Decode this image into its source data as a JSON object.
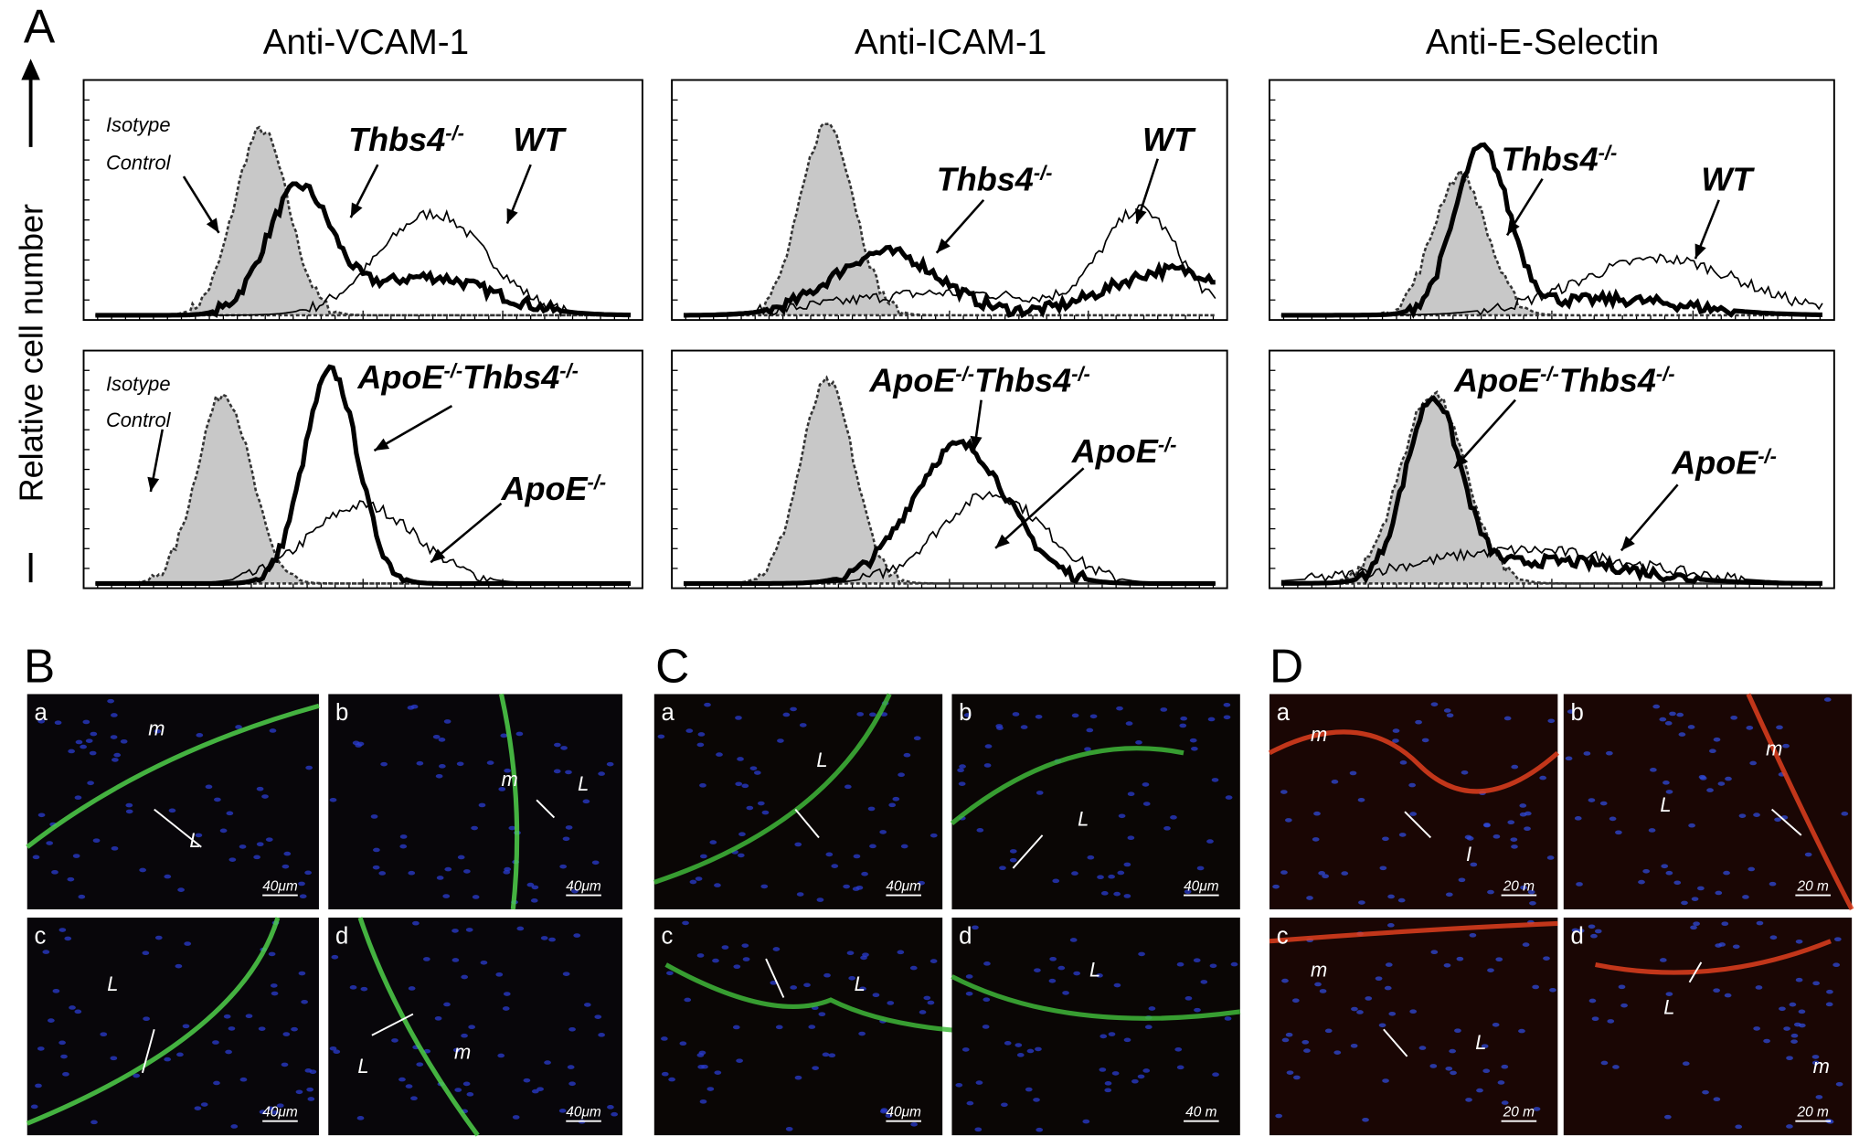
{
  "panel_a": {
    "label": "A",
    "y_axis_label": "Relative cell number",
    "columns": [
      {
        "title": "Anti-VCAM-1",
        "top_labels": [
          {
            "lines": [
              "Isotype",
              "Control"
            ]
          },
          {
            "parts": [
              {
                "text": "Thbs4",
                "sup": "-/-"
              }
            ]
          },
          {
            "parts": [
              {
                "text": "WT"
              }
            ]
          }
        ],
        "bottom_labels": [
          {
            "lines": [
              "Isotype",
              "Control"
            ]
          },
          {
            "parts": [
              {
                "text": "ApoE",
                "sup": "-/-"
              },
              {
                "text": "Thbs4",
                "sup": "-/-"
              }
            ]
          },
          {
            "parts": [
              {
                "text": "ApoE",
                "sup": "-/-"
              }
            ]
          }
        ]
      },
      {
        "title": "Anti-ICAM-1",
        "top_labels": [
          {
            "parts": [
              {
                "text": "Thbs4",
                "sup": "-/-"
              }
            ]
          },
          {
            "parts": [
              {
                "text": "WT"
              }
            ]
          }
        ],
        "bottom_labels": [
          {
            "parts": [
              {
                "text": "ApoE",
                "sup": "-/-"
              },
              {
                "text": "Thbs4",
                "sup": "-/-"
              }
            ]
          },
          {
            "parts": [
              {
                "text": "ApoE",
                "sup": "-/-"
              }
            ]
          }
        ]
      },
      {
        "title": "Anti-E-Selectin",
        "top_labels": [
          {
            "parts": [
              {
                "text": "Thbs4",
                "sup": "-/-"
              }
            ]
          },
          {
            "parts": [
              {
                "text": "WT"
              }
            ]
          }
        ],
        "bottom_labels": [
          {
            "parts": [
              {
                "text": "ApoE",
                "sup": "-/-"
              },
              {
                "text": "Thbs4",
                "sup": "-/-"
              }
            ]
          },
          {
            "parts": [
              {
                "text": "ApoE",
                "sup": "-/-"
              }
            ]
          }
        ]
      }
    ]
  },
  "micro_panels": [
    {
      "label": "B",
      "tiles": [
        {
          "letter": "a",
          "marks": [
            "m",
            "L"
          ],
          "scale_bar": "40μm"
        },
        {
          "letter": "b",
          "marks": [
            "L",
            "m"
          ],
          "scale_bar": "40μm"
        },
        {
          "letter": "c",
          "marks": [
            "L"
          ],
          "scale_bar": "40μm"
        },
        {
          "letter": "d",
          "marks": [
            "L",
            "m"
          ],
          "scale_bar": "40μm"
        }
      ]
    },
    {
      "label": "C",
      "tiles": [
        {
          "letter": "a",
          "marks": [
            "L"
          ],
          "scale_bar": "40μm"
        },
        {
          "letter": "b",
          "marks": [
            "L"
          ],
          "scale_bar": "40μm"
        },
        {
          "letter": "c",
          "marks": [
            "L"
          ],
          "scale_bar": "40μm"
        },
        {
          "letter": "d",
          "marks": [
            "L"
          ],
          "scale_bar": "40 m"
        }
      ]
    },
    {
      "label": "D",
      "tiles": [
        {
          "letter": "a",
          "marks": [
            "m",
            "I"
          ],
          "scale_bar": "20 m"
        },
        {
          "letter": "b",
          "marks": [
            "L",
            "m"
          ],
          "scale_bar": "20 m"
        },
        {
          "letter": "c",
          "marks": [
            "m",
            "L"
          ],
          "scale_bar": "20 m"
        },
        {
          "letter": "d",
          "marks": [
            "L",
            "m"
          ],
          "scale_bar": "20 m"
        }
      ]
    }
  ]
}
